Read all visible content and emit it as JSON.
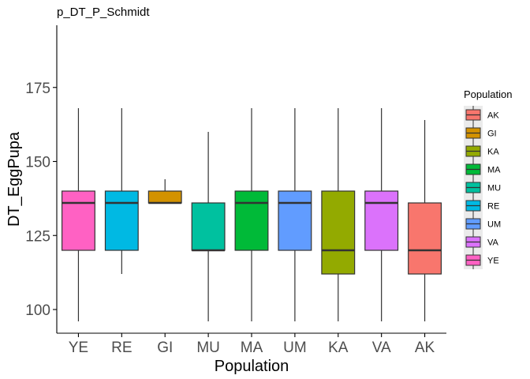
{
  "chart_data": {
    "type": "boxplot",
    "title": "p_DT_P_Schmidt",
    "xlabel": "Population",
    "ylabel": "DT_EggPupa",
    "ylim": [
      92,
      196
    ],
    "yticks": [
      100,
      125,
      150,
      175
    ],
    "grid": false,
    "legend": {
      "title": "Population",
      "position": "right"
    },
    "categories": [
      "YE",
      "RE",
      "GI",
      "MU",
      "MA",
      "UM",
      "KA",
      "VA",
      "AK"
    ],
    "boxes": [
      {
        "category": "YE",
        "min": 96,
        "q1": 120,
        "median": 136,
        "q3": 140,
        "max": 168,
        "color": "#FF61C3"
      },
      {
        "category": "RE",
        "min": 112,
        "q1": 120,
        "median": 136,
        "q3": 140,
        "max": 168,
        "color": "#00B9E3"
      },
      {
        "category": "GI",
        "min": 136,
        "q1": 136,
        "median": 136,
        "q3": 140,
        "max": 144,
        "color": "#D39200"
      },
      {
        "category": "MU",
        "min": 96,
        "q1": 120,
        "median": 120,
        "q3": 136,
        "max": 160,
        "color": "#00C19F"
      },
      {
        "category": "MA",
        "min": 96,
        "q1": 120,
        "median": 136,
        "q3": 140,
        "max": 168,
        "color": "#00BA38"
      },
      {
        "category": "UM",
        "min": 96,
        "q1": 120,
        "median": 136,
        "q3": 140,
        "max": 168,
        "color": "#619CFF"
      },
      {
        "category": "KA",
        "min": 96,
        "q1": 112,
        "median": 120,
        "q3": 140,
        "max": 168,
        "color": "#93AA00"
      },
      {
        "category": "VA",
        "min": 96,
        "q1": 120,
        "median": 136,
        "q3": 140,
        "max": 168,
        "color": "#DB72FB"
      },
      {
        "category": "AK",
        "min": 96,
        "q1": 112,
        "median": 120,
        "q3": 136,
        "max": 164,
        "color": "#F8766D"
      }
    ],
    "legend_entries": [
      {
        "label": "AK",
        "color": "#F8766D"
      },
      {
        "label": "GI",
        "color": "#D39200"
      },
      {
        "label": "KA",
        "color": "#93AA00"
      },
      {
        "label": "MA",
        "color": "#00BA38"
      },
      {
        "label": "MU",
        "color": "#00C19F"
      },
      {
        "label": "RE",
        "color": "#00B9E3"
      },
      {
        "label": "UM",
        "color": "#619CFF"
      },
      {
        "label": "VA",
        "color": "#DB72FB"
      },
      {
        "label": "YE",
        "color": "#FF61C3"
      }
    ]
  }
}
